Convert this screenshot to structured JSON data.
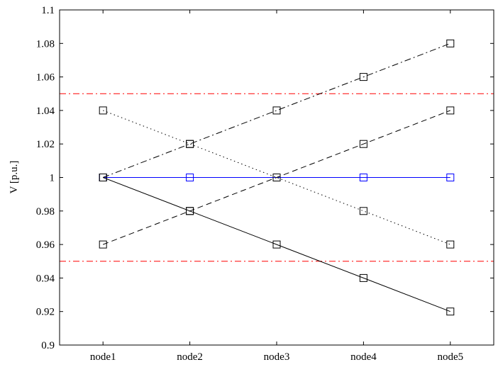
{
  "chart_data": {
    "type": "line",
    "title": "",
    "xlabel": "",
    "ylabel": "V [p.u.]",
    "categories": [
      "node1",
      "node2",
      "node3",
      "node4",
      "node5"
    ],
    "ylim": [
      0.9,
      1.1
    ],
    "yticks": [
      0.9,
      0.92,
      0.94,
      0.96,
      0.98,
      1,
      1.02,
      1.04,
      1.06,
      1.08,
      1.1
    ],
    "ytick_labels": [
      "0.9",
      "0.92",
      "0.94",
      "0.96",
      "0.98",
      "1",
      "1.02",
      "1.04",
      "1.06",
      "1.08",
      "1.1"
    ],
    "grid": false,
    "marker": "square",
    "series": [
      {
        "values": [
          1.0,
          1.0,
          1.0,
          1.0,
          1.0
        ],
        "color": "#0000ff",
        "linestyle": "solid"
      },
      {
        "values": [
          1.0,
          0.98,
          0.96,
          0.94,
          0.92
        ],
        "color": "#000000",
        "linestyle": "solid"
      },
      {
        "values": [
          1.0,
          1.02,
          1.04,
          1.06,
          1.08
        ],
        "color": "#000000",
        "linestyle": "dashdot"
      },
      {
        "values": [
          0.96,
          0.98,
          1.0,
          1.02,
          1.04
        ],
        "color": "#000000",
        "linestyle": "dashed"
      },
      {
        "values": [
          1.04,
          1.02,
          1.0,
          0.98,
          0.96
        ],
        "color": "#000000",
        "linestyle": "dotted"
      }
    ],
    "reference_lines": [
      {
        "y": 1.05,
        "color": "#ff0000",
        "linestyle": "dashdot"
      },
      {
        "y": 0.95,
        "color": "#ff0000",
        "linestyle": "dashdot"
      }
    ]
  }
}
